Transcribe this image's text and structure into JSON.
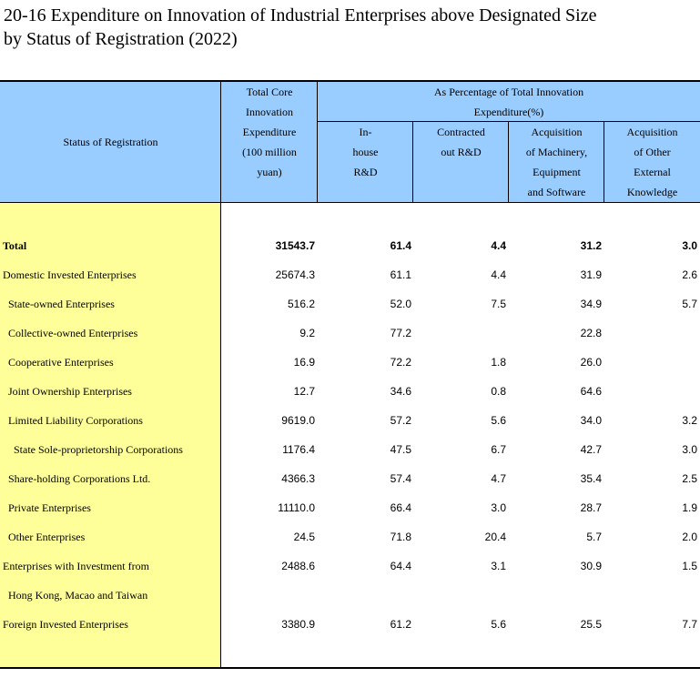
{
  "title": {
    "line1": "20-16 Expenditure on Innovation of Industrial Enterprises above Designated Size",
    "line2": "by Status of Registration (2022)"
  },
  "header": {
    "stub": "Status of Registration",
    "total_core": "Total Core\nInnovation\nExpenditure\n(100 million\nyuan)",
    "group": "As Percentage of Total Innovation\nExpenditure(%)",
    "inhouse": "In-\nhouse\nR&D",
    "contracted": "Contracted\nout R&D",
    "acq_machinery": "Acquisition\nof Machinery,\nEquipment\nand Software",
    "acq_other": "Acquisition\nof Other\nExternal\nKnowledge"
  },
  "rows": [
    {
      "label": "Total",
      "total": "31543.7",
      "inhouse": "61.4",
      "contracted": "4.4",
      "machinery": "31.2",
      "other": "3.0"
    },
    {
      "label": "Domestic Invested Enterprises",
      "total": "25674.3",
      "inhouse": "61.1",
      "contracted": "4.4",
      "machinery": "31.9",
      "other": "2.6"
    },
    {
      "label": "State-owned Enterprises",
      "total": "516.2",
      "inhouse": "52.0",
      "contracted": "7.5",
      "machinery": "34.9",
      "other": "5.7"
    },
    {
      "label": "Collective-owned Enterprises",
      "total": "9.2",
      "inhouse": "77.2",
      "contracted": "",
      "machinery": "22.8",
      "other": ""
    },
    {
      "label": "Cooperative Enterprises",
      "total": "16.9",
      "inhouse": "72.2",
      "contracted": "1.8",
      "machinery": "26.0",
      "other": ""
    },
    {
      "label": "Joint Ownership Enterprises",
      "total": "12.7",
      "inhouse": "34.6",
      "contracted": "0.8",
      "machinery": "64.6",
      "other": ""
    },
    {
      "label": "Limited Liability Corporations",
      "total": "9619.0",
      "inhouse": "57.2",
      "contracted": "5.6",
      "machinery": "34.0",
      "other": "3.2"
    },
    {
      "label": "State Sole-proprietorship Corporations",
      "total": "1176.4",
      "inhouse": "47.5",
      "contracted": "6.7",
      "machinery": "42.7",
      "other": "3.0"
    },
    {
      "label": "Share-holding Corporations Ltd.",
      "total": "4366.3",
      "inhouse": "57.4",
      "contracted": "4.7",
      "machinery": "35.4",
      "other": "2.5"
    },
    {
      "label": "Private Enterprises",
      "total": "11110.0",
      "inhouse": "66.4",
      "contracted": "3.0",
      "machinery": "28.7",
      "other": "1.9"
    },
    {
      "label": "Other Enterprises",
      "total": "24.5",
      "inhouse": "71.8",
      "contracted": "20.4",
      "machinery": "5.7",
      "other": "2.0"
    },
    {
      "label": "Enterprises with Investment from",
      "total": "2488.6",
      "inhouse": "64.4",
      "contracted": "3.1",
      "machinery": "30.9",
      "other": "1.5"
    },
    {
      "label": "Hong Kong, Macao and Taiwan",
      "total": "",
      "inhouse": "",
      "contracted": "",
      "machinery": "",
      "other": ""
    },
    {
      "label": "Foreign Invested Enterprises",
      "total": "3380.9",
      "inhouse": "61.2",
      "contracted": "5.6",
      "machinery": "25.5",
      "other": "7.7"
    }
  ],
  "colors": {
    "header_bg": "#99ccff",
    "stub_bg": "#ffff99"
  }
}
